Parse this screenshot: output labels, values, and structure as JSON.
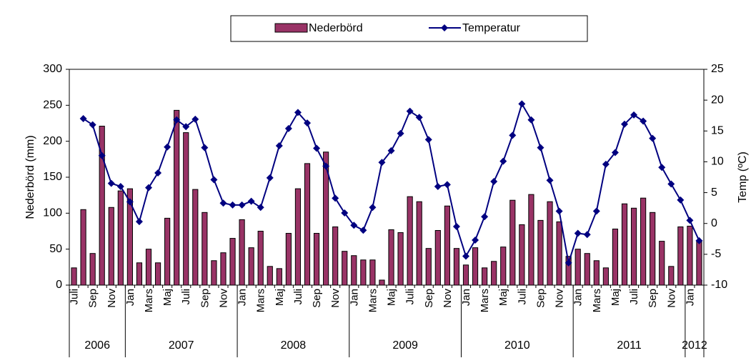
{
  "chart_data": {
    "type": "bar-line",
    "categories": [
      "Juli",
      null,
      "Sep",
      null,
      "Nov",
      null,
      "Jan",
      null,
      "Mars",
      null,
      "Maj",
      null,
      "Juli",
      null,
      "Sep",
      null,
      "Nov",
      null,
      "Jan",
      null,
      "Mars",
      null,
      "Maj",
      null,
      "Juli",
      null,
      "Sep",
      null,
      "Nov",
      null,
      "Jan",
      null,
      "Mars",
      null,
      "Maj",
      null,
      "Juli",
      null,
      "Sep",
      null,
      "Nov",
      null,
      "Jan",
      null,
      "Mars",
      null,
      "Maj",
      null,
      "Juli",
      null,
      "Sep",
      null,
      "Nov",
      null,
      "Jan",
      null,
      "Mars",
      null,
      "Maj",
      null,
      "Juli",
      null,
      "Sep",
      null,
      "Nov",
      null,
      "Jan",
      null
    ],
    "year_groups": [
      {
        "label": "2006",
        "months": 6
      },
      {
        "label": "2007",
        "months": 12
      },
      {
        "label": "2008",
        "months": 12
      },
      {
        "label": "2009",
        "months": 12
      },
      {
        "label": "2010",
        "months": 12
      },
      {
        "label": "2011",
        "months": 12
      },
      {
        "label": "2012",
        "months": 2
      }
    ],
    "series": [
      {
        "name": "Nederbörd",
        "kind": "bar",
        "color": "#993366",
        "values": [
          24,
          105,
          44,
          221,
          108,
          131,
          134,
          31,
          50,
          31,
          93,
          243,
          212,
          133,
          101,
          34,
          45,
          65,
          91,
          52,
          75,
          26,
          23,
          72,
          134,
          169,
          72,
          185,
          81,
          47,
          41,
          35,
          35,
          7,
          77,
          73,
          123,
          116,
          51,
          76,
          110,
          51,
          28,
          52,
          24,
          33,
          53,
          118,
          84,
          126,
          90,
          116,
          88,
          40,
          50,
          44,
          34,
          24,
          78,
          113,
          107,
          121,
          101,
          61,
          26,
          81,
          82,
          62
        ]
      },
      {
        "name": "Temperatur",
        "kind": "line",
        "axis": "y2",
        "color": "#000080",
        "values": [
          null,
          17,
          16,
          11,
          6.5,
          6,
          3.5,
          0.3,
          5.8,
          8.2,
          12.4,
          16.8,
          15.7,
          16.9,
          12.3,
          7.1,
          3.3,
          3,
          3,
          3.6,
          2.6,
          7.4,
          12.6,
          15.4,
          18,
          16.3,
          12.2,
          9.3,
          4.1,
          1.7,
          -0.3,
          -1.1,
          2.6,
          9.9,
          11.8,
          14.6,
          18.2,
          17.2,
          13.6,
          6,
          6.3,
          -0.5,
          -5.3,
          -2.7,
          1.1,
          6.8,
          10.1,
          14.3,
          19.4,
          16.8,
          12.3,
          7,
          2,
          -6.4,
          -1.6,
          -1.8,
          2,
          9.6,
          11.5,
          16.1,
          17.6,
          16.6,
          13.8,
          9.1,
          6.4,
          3.8,
          0.5,
          -2.8
        ]
      }
    ],
    "ylabel": "Nederbörd (mm)",
    "y2label": "Temp (ºC)",
    "ylim": [
      0,
      300
    ],
    "yticks": [
      0,
      50,
      100,
      150,
      200,
      250,
      300
    ],
    "y2lim": [
      -10,
      25
    ],
    "y2ticks": [
      -10,
      -5,
      0,
      5,
      10,
      15,
      20,
      25
    ],
    "grid": false,
    "legend": "top"
  }
}
